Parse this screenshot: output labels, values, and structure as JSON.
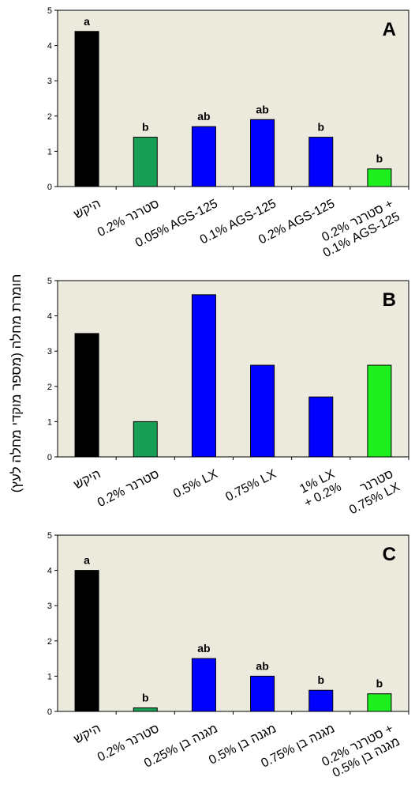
{
  "y_axis_label": "חומרת מחלה (מספר מוקדי מחלה לעץ)",
  "colors": {
    "plot_bg": "#ECE9DD",
    "control": "#000000",
    "reference": "#17A055",
    "treatment": "#0000FF",
    "combo": "#1EEF1E"
  },
  "chart_data": [
    {
      "type": "bar",
      "panel_label": "A",
      "categories": [
        "היקש",
        "0.2% סטרנר",
        "0.05% AGS-125",
        "0.1% AGS-125",
        "0.2% AGS-125",
        [
          "סטרנר 0.2% +",
          "0.1% AGS-125"
        ]
      ],
      "values": [
        4.4,
        1.4,
        1.7,
        1.9,
        1.4,
        0.5
      ],
      "letters": [
        "a",
        "b",
        "ab",
        "ab",
        "b",
        "b"
      ],
      "bar_colors": [
        "control",
        "reference",
        "treatment",
        "treatment",
        "treatment",
        "combo"
      ],
      "ylim": [
        0,
        5
      ],
      "yticks": [
        0,
        1,
        2,
        3,
        4,
        5
      ],
      "grid": false
    },
    {
      "type": "bar",
      "panel_label": "B",
      "categories": [
        "היקש",
        "0.2% סטרנר",
        "0.5% LX",
        "0.75% LX",
        [
          "1% LX",
          "+ 0.2%"
        ],
        [
          "סטרנר",
          "0.75% LX"
        ]
      ],
      "values": [
        3.5,
        1.0,
        4.6,
        2.6,
        1.7,
        2.6
      ],
      "letters": [
        "",
        "",
        "",
        "",
        "",
        ""
      ],
      "bar_colors": [
        "control",
        "reference",
        "treatment",
        "treatment",
        "treatment",
        "combo"
      ],
      "ylim": [
        0,
        5
      ],
      "yticks": [
        0,
        1,
        2,
        3,
        4,
        5
      ],
      "grid": false
    },
    {
      "type": "bar",
      "panel_label": "C",
      "categories": [
        "היקש",
        "0.2% סטרנר",
        "0.25% מגנה בן",
        "0.5% מגנה בן",
        "0.75% מגנה בן",
        [
          "סטרנר 0.2% +",
          "מגנה בן 0.5%"
        ]
      ],
      "values": [
        4.0,
        0.1,
        1.5,
        1.0,
        0.6,
        0.5
      ],
      "letters": [
        "a",
        "b",
        "ab",
        "ab",
        "b",
        "b"
      ],
      "bar_colors": [
        "control",
        "reference",
        "treatment",
        "treatment",
        "treatment",
        "combo"
      ],
      "ylim": [
        0,
        5
      ],
      "yticks": [
        0,
        1,
        2,
        3,
        4,
        5
      ],
      "grid": false
    }
  ]
}
